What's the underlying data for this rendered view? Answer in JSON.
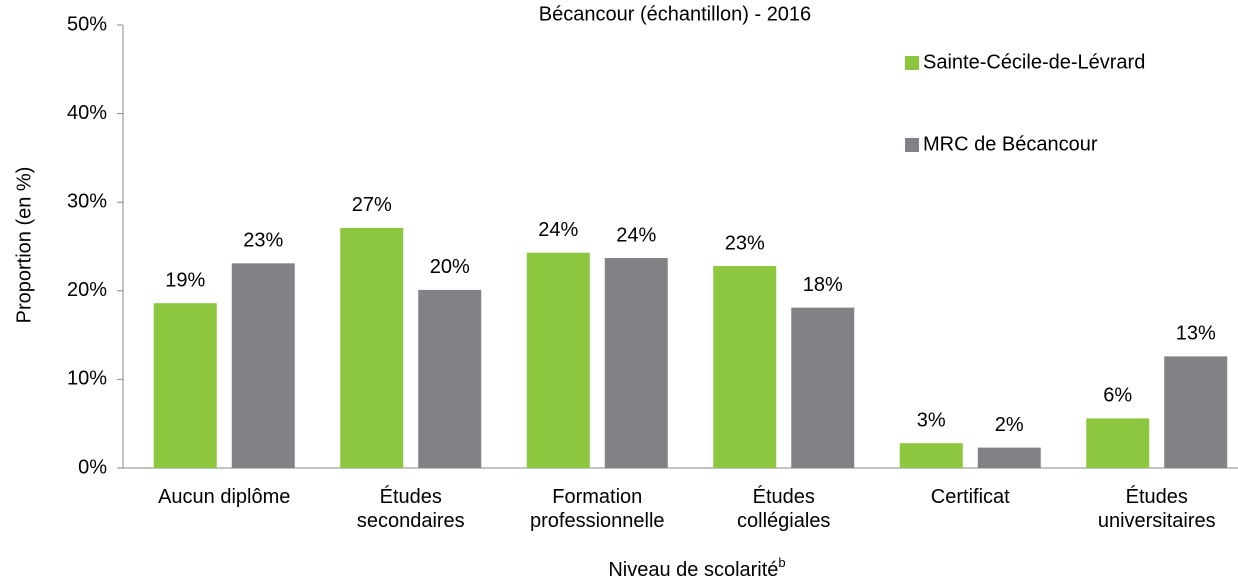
{
  "chart_data": {
    "type": "bar",
    "title": "Bécancour (échantillon) - 2016",
    "ylabel": "Proportion (en %)",
    "xlabel": "Niveau de scolarité",
    "xlabel_superscript": "b",
    "categories": [
      "Aucun diplôme",
      "Études\nsecondaires",
      "Formation\nprofessionnelle",
      "Études\ncollégiales",
      "Certificat",
      "Études\nuniversitaires"
    ],
    "series": [
      {
        "name": "Sainte-Cécile-de-Lévrard",
        "color": "#8dc63f",
        "values": [
          18.6,
          27.1,
          24.3,
          22.8,
          2.8,
          5.6
        ],
        "value_labels": [
          "19%",
          "27%",
          "24%",
          "23%",
          "3%",
          "6%"
        ]
      },
      {
        "name": "MRC de Bécancour",
        "color": "#808285",
        "values": [
          23.1,
          20.1,
          23.7,
          18.1,
          2.3,
          12.6
        ],
        "value_labels": [
          "23%",
          "20%",
          "24%",
          "18%",
          "2%",
          "13%"
        ]
      }
    ],
    "ylim": [
      0,
      50
    ],
    "yticks": [
      {
        "value": 0,
        "label": "0%"
      },
      {
        "value": 10,
        "label": "10%"
      },
      {
        "value": 20,
        "label": "20%"
      },
      {
        "value": 30,
        "label": "30%"
      },
      {
        "value": 40,
        "label": "40%"
      },
      {
        "value": 50,
        "label": "50%"
      }
    ],
    "legend": "upper right",
    "grid": false
  }
}
